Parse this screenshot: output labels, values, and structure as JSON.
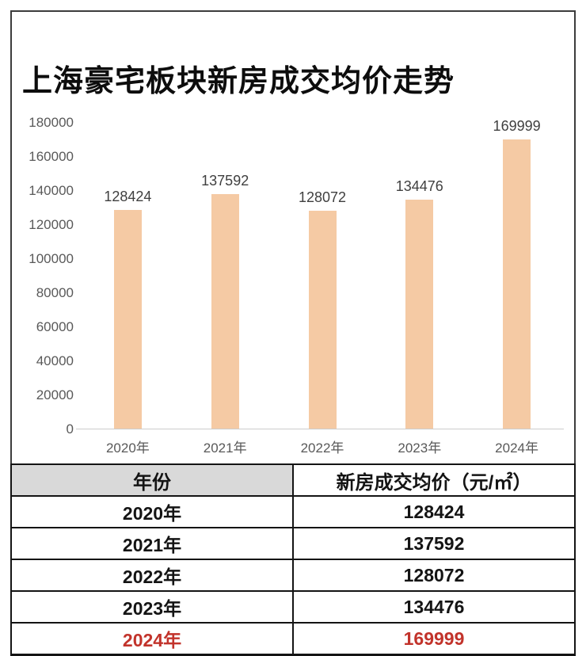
{
  "title": "上海豪宅板块新房成交均价走势",
  "colors": {
    "bar": "#f5caa4",
    "highlight_red": "#c2332b",
    "header_bg": "#d9d9d9",
    "axis_text": "#595959",
    "bar_label_text": "#3f3f3f",
    "table_border": "#141414"
  },
  "chart_data": {
    "type": "bar",
    "title": "上海豪宅板块新房成交均价走势",
    "categories": [
      "2020年",
      "2021年",
      "2022年",
      "2023年",
      "2024年"
    ],
    "values": [
      128424,
      137592,
      128072,
      134476,
      169999
    ],
    "value_labels": [
      "128424",
      "137592",
      "128072",
      "134476",
      "169999"
    ],
    "xlabel": "",
    "ylabel": "",
    "ylim": [
      0,
      180000
    ],
    "y_ticks": [
      "180000",
      "160000",
      "140000",
      "120000",
      "100000",
      "80000",
      "60000",
      "40000",
      "20000",
      "0"
    ],
    "grid": false,
    "legend_position": "none",
    "bar_color": "#f5caa4"
  },
  "table": {
    "headers": [
      "年份",
      "新房成交均价（元/㎡）"
    ],
    "rows": [
      {
        "year": "2020年",
        "price": "128424",
        "highlight": false
      },
      {
        "year": "2021年",
        "price": "137592",
        "highlight": false
      },
      {
        "year": "2022年",
        "price": "128072",
        "highlight": false
      },
      {
        "year": "2023年",
        "price": "134476",
        "highlight": false
      },
      {
        "year": "2024年",
        "price": "169999",
        "highlight": true
      }
    ]
  }
}
